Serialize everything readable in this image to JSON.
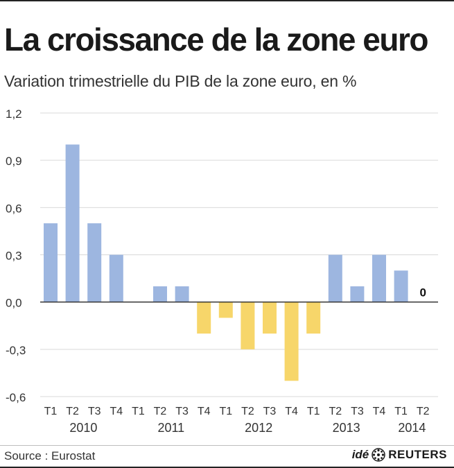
{
  "header": {
    "title": "La croissance de la zone euro",
    "subtitle": "Variation trimestrielle du PIB de la zone euro, en %"
  },
  "footer": {
    "source": "Source : Eurostat",
    "brand_prefix": "idé",
    "brand_name": "REUTERS"
  },
  "colors": {
    "positive": "#9db6e0",
    "negative": "#f7d66a",
    "grid": "#d9d9d9",
    "baseline": "#333333",
    "text": "#333333"
  },
  "chart_data": {
    "type": "bar",
    "title": "La croissance de la zone euro",
    "subtitle": "Variation trimestrielle du PIB de la zone euro, en %",
    "categories": [
      "T1",
      "T2",
      "T3",
      "T4",
      "T1",
      "T2",
      "T3",
      "T4",
      "T1",
      "T2",
      "T3",
      "T4",
      "T1",
      "T2",
      "T3",
      "T4",
      "T1",
      "T2"
    ],
    "years": [
      {
        "label": "2010",
        "start": 0,
        "end": 3
      },
      {
        "label": "2011",
        "start": 4,
        "end": 7
      },
      {
        "label": "2012",
        "start": 8,
        "end": 11
      },
      {
        "label": "2013",
        "start": 12,
        "end": 15
      },
      {
        "label": "2014",
        "start": 16,
        "end": 17
      }
    ],
    "values": [
      0.5,
      1.0,
      0.5,
      0.3,
      0.0,
      0.1,
      0.1,
      -0.2,
      -0.1,
      -0.3,
      -0.2,
      -0.5,
      -0.2,
      0.3,
      0.1,
      0.3,
      0.2,
      0.0
    ],
    "ylim": [
      -0.6,
      1.2
    ],
    "yticks": [
      "1,2",
      "0,9",
      "0,6",
      "0,3",
      "0,0",
      "-0,3",
      "-0,6"
    ],
    "ytick_values": [
      1.2,
      0.9,
      0.6,
      0.3,
      0.0,
      -0.3,
      -0.6
    ],
    "annotations": [
      {
        "index": 17,
        "text": "0"
      }
    ],
    "grid": true,
    "legend": "none"
  }
}
